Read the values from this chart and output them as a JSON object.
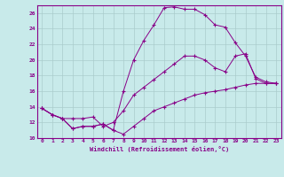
{
  "xlabel": "Windchill (Refroidissement éolien,°C)",
  "bg_color": "#c8eaea",
  "line_color": "#880088",
  "grid_color": "#aacccc",
  "xlim": [
    -0.5,
    23.5
  ],
  "ylim": [
    10,
    27
  ],
  "yticks": [
    10,
    12,
    14,
    16,
    18,
    20,
    22,
    24,
    26
  ],
  "xticks": [
    0,
    1,
    2,
    3,
    4,
    5,
    6,
    7,
    8,
    9,
    10,
    11,
    12,
    13,
    14,
    15,
    16,
    17,
    18,
    19,
    20,
    21,
    22,
    23
  ],
  "line1_x": [
    0,
    1,
    2,
    3,
    4,
    5,
    6,
    7,
    8,
    9,
    10,
    11,
    12,
    13,
    14,
    15,
    16,
    17,
    18,
    19,
    20,
    21,
    22,
    23
  ],
  "line1_y": [
    13.8,
    13.0,
    12.5,
    12.5,
    12.5,
    12.7,
    11.5,
    12.0,
    13.5,
    15.5,
    16.5,
    17.5,
    18.5,
    19.5,
    20.5,
    20.5,
    20.0,
    19.0,
    18.5,
    20.5,
    20.8,
    17.6,
    17.0,
    17.0
  ],
  "line2_x": [
    0,
    1,
    2,
    3,
    4,
    5,
    6,
    7,
    8,
    9,
    10,
    11,
    12,
    13,
    14,
    15,
    16,
    17,
    18,
    19,
    20,
    21,
    22,
    23
  ],
  "line2_y": [
    13.8,
    13.0,
    12.5,
    11.2,
    11.5,
    11.5,
    11.8,
    11.0,
    10.5,
    11.5,
    12.5,
    13.5,
    14.0,
    14.5,
    15.0,
    15.5,
    15.8,
    16.0,
    16.2,
    16.5,
    16.8,
    17.0,
    17.0,
    17.0
  ],
  "line3_x": [
    0,
    1,
    2,
    3,
    4,
    5,
    6,
    7,
    8,
    9,
    10,
    11,
    12,
    13,
    14,
    15,
    16,
    17,
    18,
    19,
    20,
    21,
    22,
    23
  ],
  "line3_y": [
    13.8,
    13.0,
    12.5,
    11.2,
    11.5,
    11.5,
    11.8,
    11.0,
    16.0,
    20.0,
    22.5,
    24.5,
    26.7,
    26.8,
    26.5,
    26.5,
    25.8,
    24.5,
    24.2,
    22.2,
    20.5,
    17.8,
    17.2,
    17.0
  ]
}
